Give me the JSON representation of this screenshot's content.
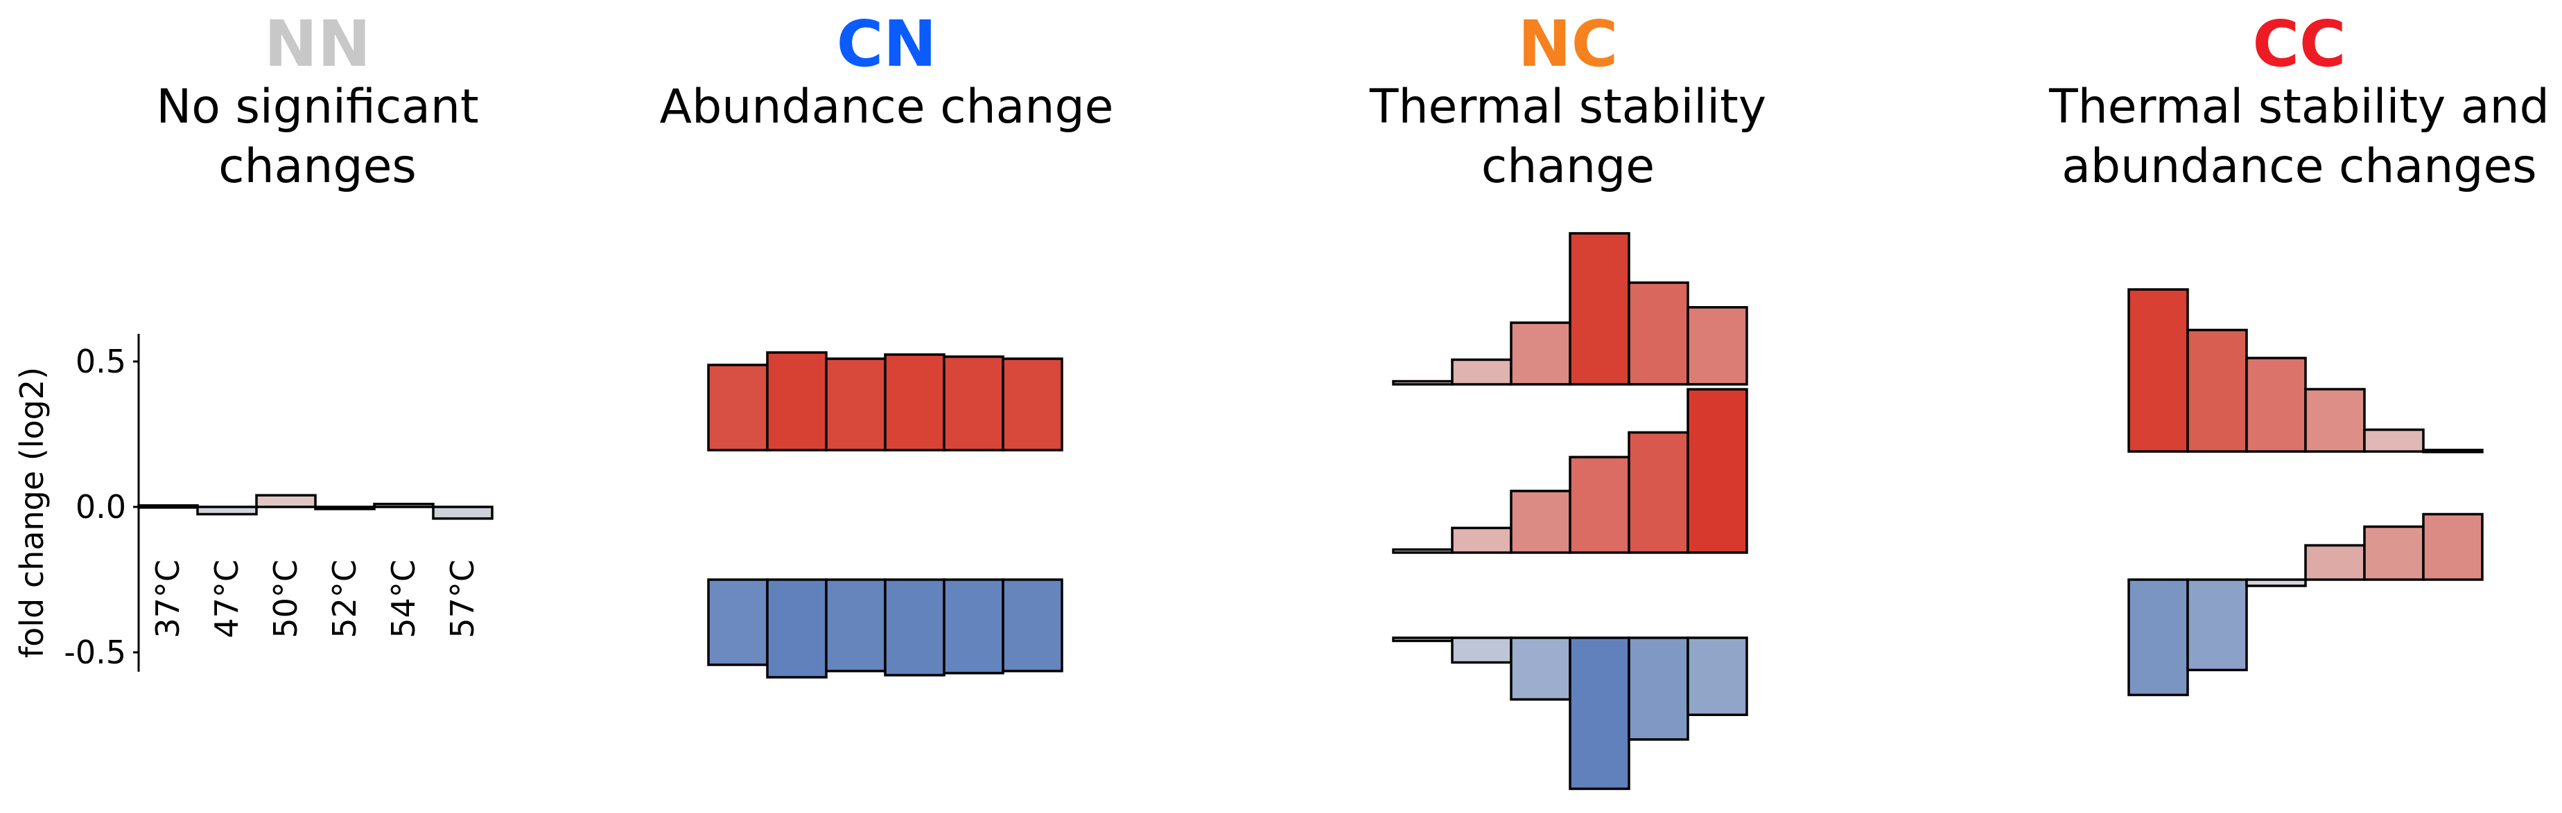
{
  "chart_data": [
    {
      "type": "bar",
      "panel": "NN",
      "code": "NN",
      "code_color": "#c8c8c8",
      "subtitle": [
        "No significant",
        "changes"
      ],
      "ylabel": "fold change (log2)",
      "yticks": [
        "0.5",
        "0.0",
        "-0.5"
      ],
      "ylim": [
        -0.57,
        0.6
      ],
      "categories": [
        "37°C",
        "47°C",
        "50°C",
        "52°C",
        "54°C",
        "57°C"
      ],
      "series": [
        {
          "values": [
            0.005,
            -0.025,
            0.04,
            -0.005,
            0.01,
            -0.04
          ]
        }
      ]
    },
    {
      "type": "bar",
      "panel": "CN",
      "code": "CN",
      "code_color": "#0b5cff",
      "subtitle": [
        "Abundance change"
      ],
      "series": [
        {
          "baseline": "up",
          "values": [
            0.41,
            0.47,
            0.44,
            0.46,
            0.45,
            0.44
          ]
        },
        {
          "baseline": "down",
          "values": [
            -0.41,
            -0.47,
            -0.44,
            -0.46,
            -0.45,
            -0.44
          ]
        }
      ]
    },
    {
      "type": "bar",
      "panel": "NC",
      "code": "NC",
      "code_color": "#f5821f",
      "subtitle": [
        "Thermal stability",
        "change"
      ],
      "series": [
        {
          "baseline": "up",
          "values": [
            0.01,
            0.08,
            0.2,
            0.49,
            0.33,
            0.25
          ]
        },
        {
          "baseline": "up",
          "values": [
            0.01,
            0.08,
            0.2,
            0.31,
            0.39,
            0.53
          ]
        },
        {
          "baseline": "down",
          "values": [
            -0.01,
            -0.08,
            -0.2,
            -0.49,
            -0.33,
            -0.25
          ]
        }
      ]
    },
    {
      "type": "bar",
      "panel": "CC",
      "code": "CC",
      "code_color": "#ed1c24",
      "subtitle": [
        "Thermal stability and",
        "abundance changes"
      ],
      "series": [
        {
          "baseline": "up",
          "values": [
            0.52,
            0.39,
            0.3,
            0.2,
            0.07,
            0.005
          ]
        },
        {
          "baseline": "down",
          "values": [
            -0.37,
            -0.29,
            -0.02,
            0.11,
            0.17,
            0.21
          ]
        }
      ]
    }
  ],
  "colors": {
    "positive_max": "#d73a2c",
    "negative_max": "#5a7dba",
    "neutral": "#e2e0e0"
  }
}
